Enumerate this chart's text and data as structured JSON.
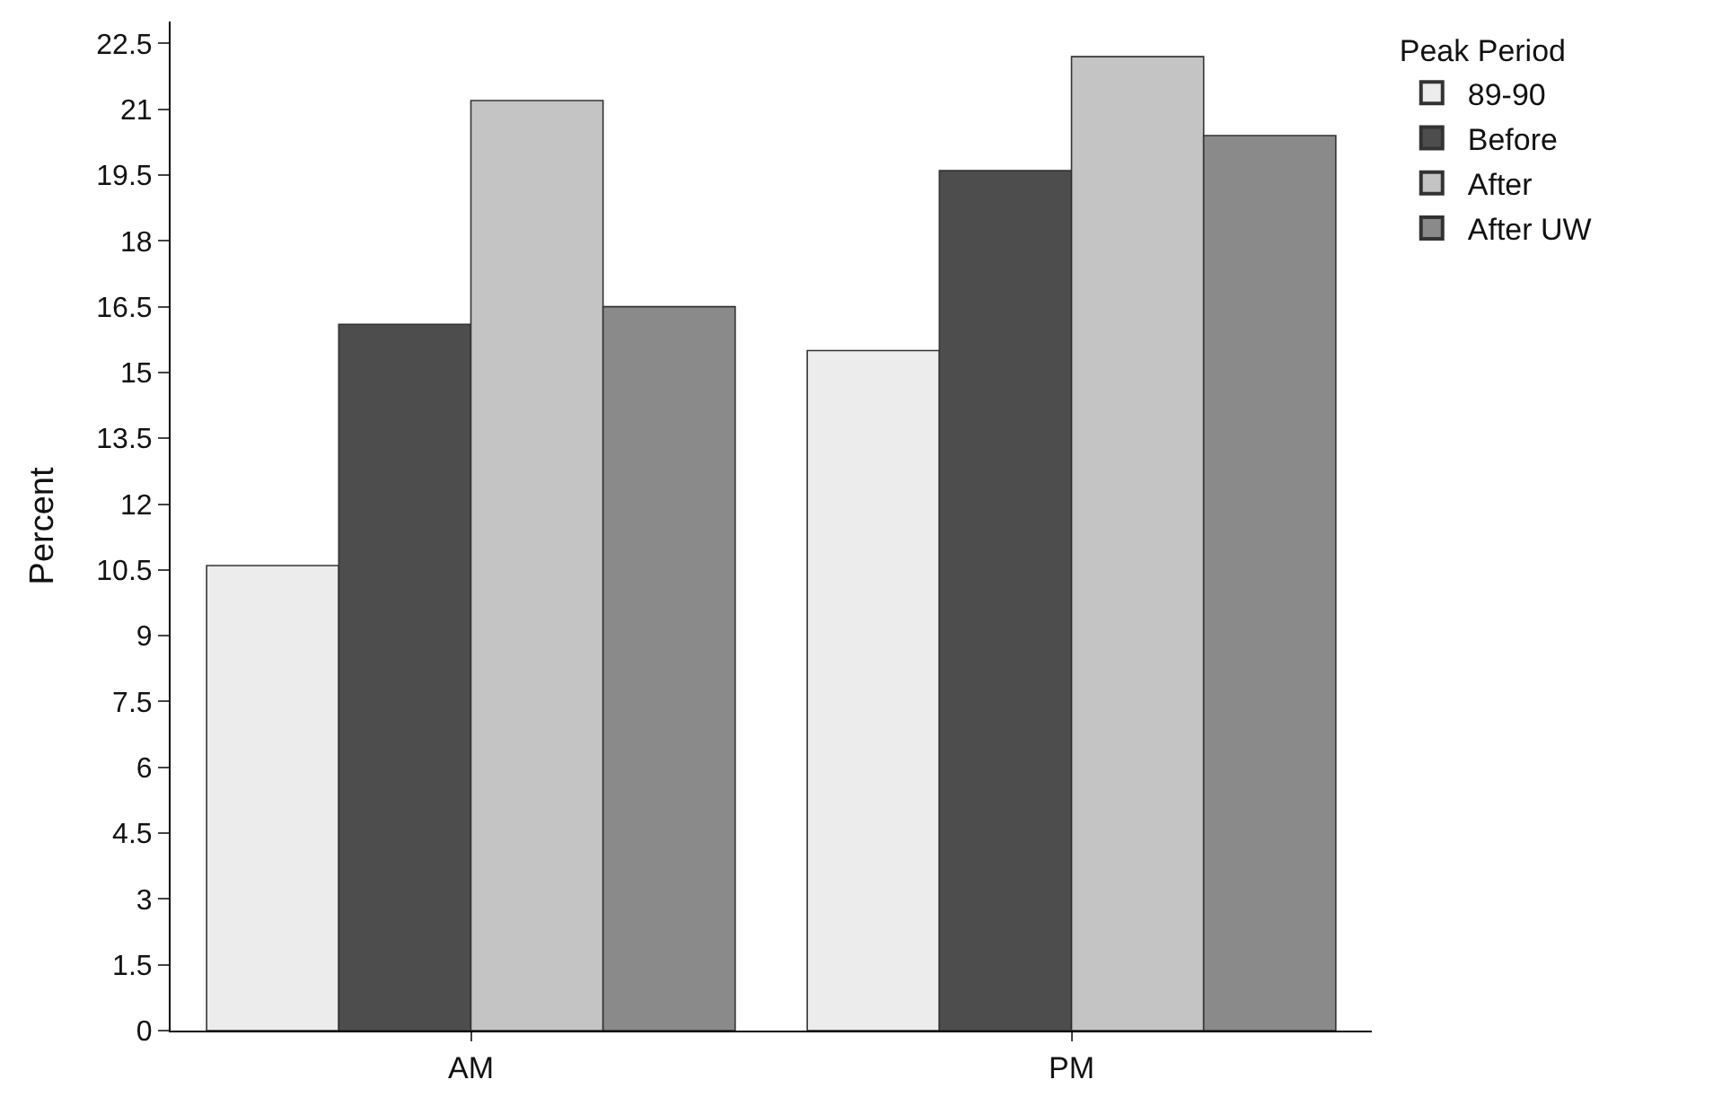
{
  "chart_data": {
    "type": "bar",
    "ylabel": "Percent",
    "legend_title": "Peak Period",
    "categories": [
      "AM",
      "PM"
    ],
    "series": [
      {
        "name": "89-90",
        "color": "#ececec",
        "values": [
          10.6,
          15.5
        ]
      },
      {
        "name": "Before",
        "color": "#4d4d4d",
        "values": [
          16.1,
          19.6
        ]
      },
      {
        "name": "After",
        "color": "#c4c4c4",
        "values": [
          21.2,
          22.2
        ]
      },
      {
        "name": "After UW",
        "color": "#8a8a8a",
        "values": [
          16.5,
          20.4
        ]
      }
    ],
    "ylim": [
      0,
      23
    ],
    "yticks": [
      0,
      1.5,
      3,
      4.5,
      6,
      7.5,
      9,
      10.5,
      12,
      13.5,
      15,
      16.5,
      18,
      19.5,
      21,
      22.5
    ],
    "legend": "top right"
  }
}
